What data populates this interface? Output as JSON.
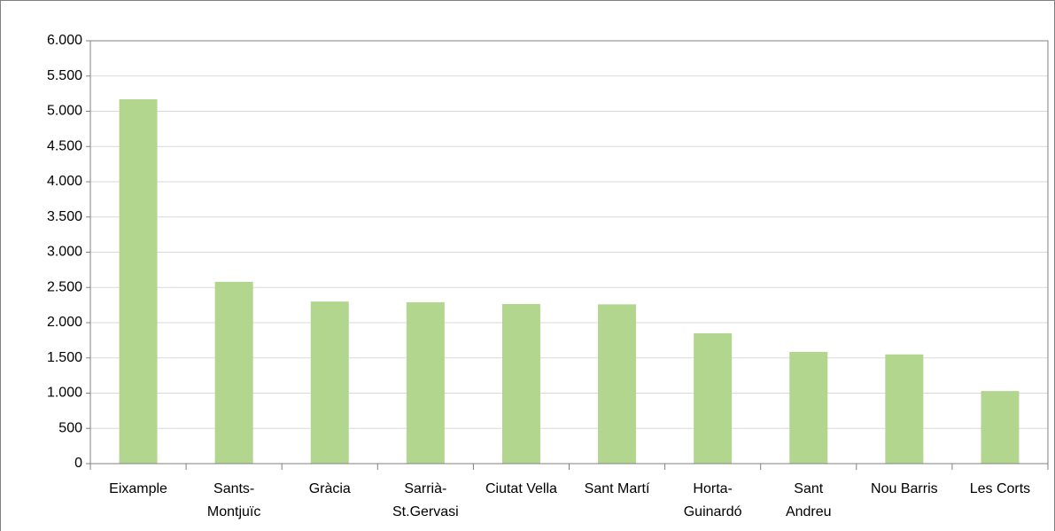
{
  "chart_data": {
    "type": "bar",
    "categories": [
      "Eixample",
      "Sants-\nMontjuïc",
      "Gràcia",
      "Sarrià-\nSt.Gervasi",
      "Ciutat Vella",
      "Sant Martí",
      "Horta-\nGuinardó",
      "Sant\nAndreu",
      "Nou Barris",
      "Les Corts"
    ],
    "values": [
      5170,
      2580,
      2300,
      2290,
      2265,
      2260,
      1850,
      1585,
      1550,
      1030
    ],
    "color": "#b3d68f",
    "ylim": [
      0,
      6000
    ],
    "yticks": [
      0,
      500,
      {
        "value": 1000,
        "label": "1.000"
      },
      {
        "value": 1500,
        "label": "1.500"
      },
      {
        "value": 2000,
        "label": "2.000"
      },
      {
        "value": 2500,
        "label": "2.500"
      },
      {
        "value": 3000,
        "label": "3.000"
      },
      {
        "value": 3500,
        "label": "3.500"
      },
      {
        "value": 4000,
        "label": "4.000"
      },
      {
        "value": 4500,
        "label": "4.500"
      },
      {
        "value": 5000,
        "label": "5.000"
      },
      {
        "value": 5500,
        "label": "5.500"
      },
      {
        "value": 6000,
        "label": "6.000"
      }
    ],
    "grid": true
  }
}
